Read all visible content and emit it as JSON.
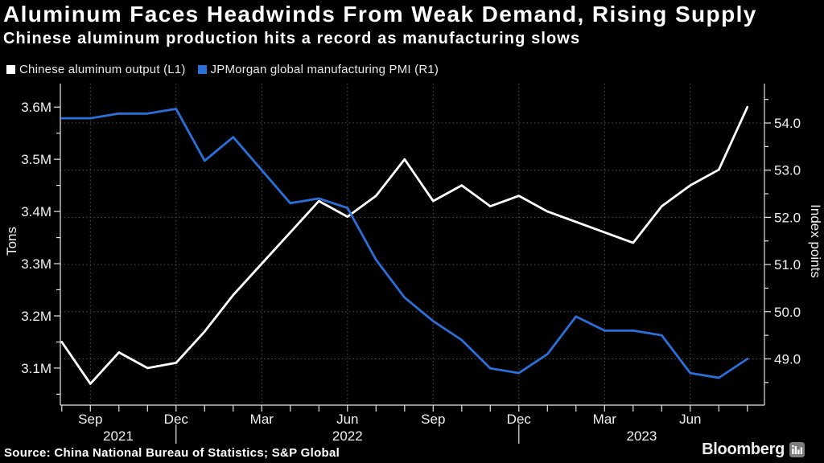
{
  "header": {
    "title": "Aluminum Faces Headwinds From Weak Demand, Rising Supply",
    "subtitle": "Chinese aluminum production hits a record as manufacturing slows"
  },
  "legend": {
    "items": [
      {
        "label": "Chinese aluminum output (L1)",
        "color": "#ffffff"
      },
      {
        "label": "JPMorgan global manufacturing PMI (R1)",
        "color": "#2b6fd9"
      }
    ]
  },
  "footer": {
    "source": "Source: China National Bureau of Statistics; S&P Global",
    "brand": "Bloomberg",
    "brand_icon": "bar-chart-terminal-icon"
  },
  "chart_data": {
    "type": "line",
    "x": [
      "Aug 2021",
      "Sep 2021",
      "Oct 2021",
      "Nov 2021",
      "Dec 2021",
      "Jan 2022",
      "Feb 2022",
      "Mar 2022",
      "Apr 2022",
      "May 2022",
      "Jun 2022",
      "Jul 2022",
      "Aug 2022",
      "Sep 2022",
      "Oct 2022",
      "Nov 2022",
      "Dec 2022",
      "Jan 2023",
      "Feb 2023",
      "Mar 2023",
      "Apr 2023",
      "May 2023",
      "Jun 2023",
      "Jul 2023",
      "Aug 2023"
    ],
    "series": [
      {
        "name": "Chinese aluminum output (L1)",
        "axis": "left",
        "unit": "million tons",
        "color": "#ffffff",
        "values": [
          3.15,
          3.07,
          3.13,
          3.1,
          3.11,
          3.17,
          3.24,
          3.3,
          3.36,
          3.42,
          3.39,
          3.43,
          3.5,
          3.42,
          3.45,
          3.41,
          3.43,
          3.4,
          3.38,
          3.36,
          3.34,
          3.41,
          3.45,
          3.48,
          3.6
        ]
      },
      {
        "name": "JPMorgan global manufacturing PMI (R1)",
        "axis": "right",
        "unit": "index points",
        "color": "#2b6fd9",
        "values": [
          54.1,
          54.1,
          54.2,
          54.2,
          54.3,
          53.2,
          53.7,
          53.0,
          52.3,
          52.4,
          52.2,
          51.1,
          50.3,
          49.8,
          49.4,
          48.8,
          48.7,
          49.1,
          49.9,
          49.6,
          49.6,
          49.5,
          48.7,
          48.6,
          49.0
        ]
      }
    ],
    "left_axis": {
      "title": "Tons",
      "tick_labels": [
        "3.6M",
        "3.5M",
        "3.4M",
        "3.3M",
        "3.2M",
        "3.1M"
      ],
      "tick_values": [
        3.6,
        3.5,
        3.4,
        3.3,
        3.2,
        3.1
      ],
      "minor_tick_values": [
        3.55,
        3.45,
        3.35,
        3.25,
        3.15,
        3.05
      ],
      "range": [
        3.029,
        3.645
      ]
    },
    "right_axis": {
      "title": "Index points",
      "tick_labels": [
        "54.0",
        "53.0",
        "52.0",
        "51.0",
        "50.0",
        "49.0"
      ],
      "tick_values": [
        54,
        53,
        52,
        51,
        50,
        49
      ],
      "minor_tick_values": [
        54.5,
        53.5,
        52.5,
        51.5,
        50.5,
        49.5,
        48.5
      ],
      "range": [
        48.02,
        54.835
      ]
    },
    "x_axis": {
      "quarter_tick_indices": [
        1,
        4,
        7,
        10,
        13,
        16,
        19,
        22
      ],
      "quarter_labels": [
        "Sep",
        "Dec",
        "Mar",
        "Jun",
        "Sep",
        "Dec",
        "Mar",
        "Jun"
      ],
      "year_separator_indices": [
        4,
        16
      ],
      "year_labels": [
        "2021",
        "2022",
        "2023"
      ]
    },
    "grid": {
      "horizontal": "right-axis integers, dotted",
      "vertical": "quarter ticks, dotted"
    },
    "legend_position": "top-left"
  }
}
